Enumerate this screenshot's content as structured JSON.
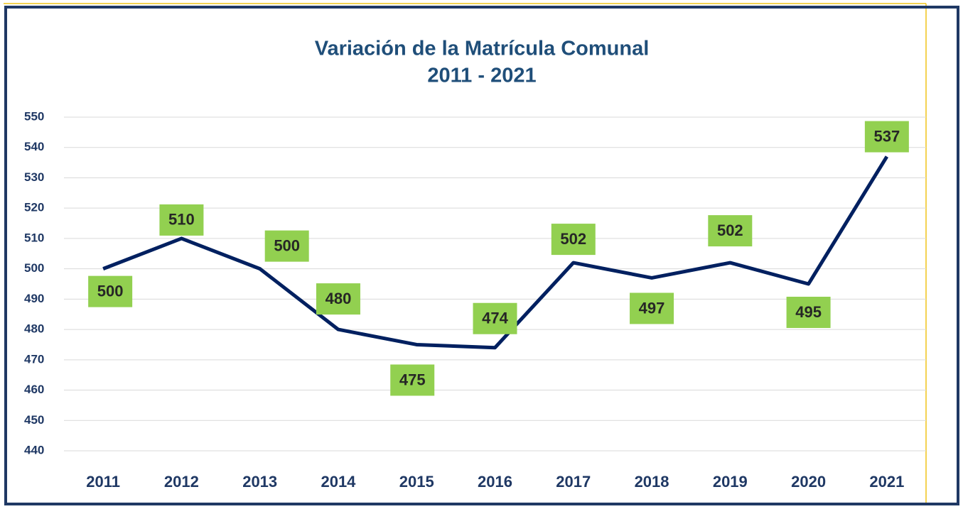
{
  "chart_data": {
    "type": "line",
    "title": "Variación de la Matrícula Comunal",
    "subtitle": "2011 - 2021",
    "categories": [
      "2011",
      "2012",
      "2013",
      "2014",
      "2015",
      "2016",
      "2017",
      "2018",
      "2019",
      "2020",
      "2021"
    ],
    "series": [
      {
        "name": "Matrícula",
        "color": "#002060",
        "values": [
          500,
          510,
          500,
          480,
          475,
          474,
          502,
          497,
          502,
          495,
          537
        ]
      }
    ],
    "label_color": "#92d050",
    "ylim": [
      440,
      550
    ],
    "yticks": [
      440,
      450,
      460,
      470,
      480,
      490,
      500,
      510,
      520,
      530,
      540,
      550
    ],
    "grid": true
  }
}
